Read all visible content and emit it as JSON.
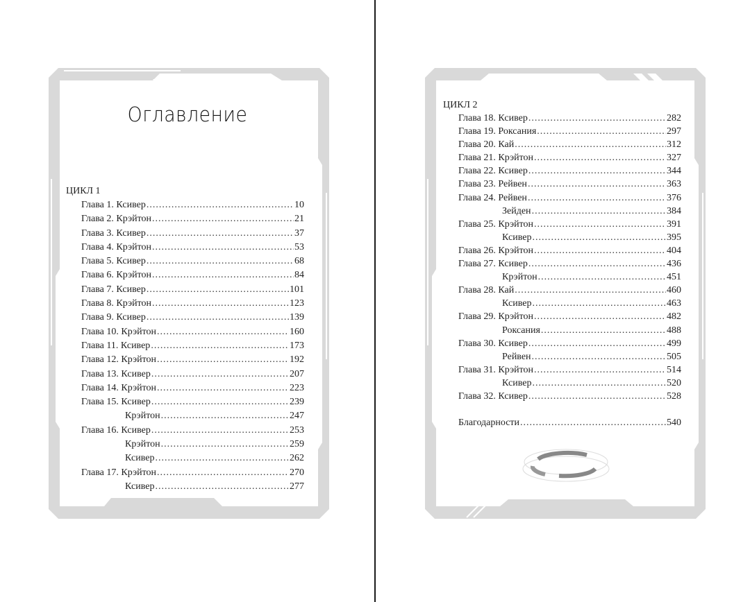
{
  "left_page": {
    "title": "Оглавление",
    "cycle": "ЦИКЛ 1",
    "entries": [
      {
        "label": "Глава 1. Ксивер",
        "page": "10",
        "sub": false
      },
      {
        "label": "Глава 2. Крэйтон",
        "page": "21",
        "sub": false
      },
      {
        "label": "Глава 3. Ксивер",
        "page": "37",
        "sub": false
      },
      {
        "label": "Глава 4. Крэйтон",
        "page": "53",
        "sub": false
      },
      {
        "label": "Глава 5. Ксивер",
        "page": "68",
        "sub": false
      },
      {
        "label": "Глава 6. Крэйтон",
        "page": "84",
        "sub": false
      },
      {
        "label": "Глава 7. Ксивер",
        "page": "101",
        "sub": false
      },
      {
        "label": "Глава 8. Крэйтон",
        "page": "123",
        "sub": false
      },
      {
        "label": "Глава 9. Ксивер",
        "page": "139",
        "sub": false
      },
      {
        "label": "Глава 10. Крэйтон",
        "page": "160",
        "sub": false
      },
      {
        "label": "Глава 11. Ксивер",
        "page": "173",
        "sub": false
      },
      {
        "label": "Глава 12. Крэйтон",
        "page": "192",
        "sub": false
      },
      {
        "label": "Глава 13. Ксивер",
        "page": "207",
        "sub": false
      },
      {
        "label": "Глава 14. Крэйтон",
        "page": "223",
        "sub": false
      },
      {
        "label": "Глава 15. Ксивер",
        "page": "239",
        "sub": false
      },
      {
        "label": "Крэйтон",
        "page": "247",
        "sub": true
      },
      {
        "label": "Глава 16. Ксивер",
        "page": "253",
        "sub": false
      },
      {
        "label": "Крэйтон",
        "page": "259",
        "sub": true
      },
      {
        "label": "Ксивер",
        "page": "262",
        "sub": true
      },
      {
        "label": "Глава 17. Крэйтон",
        "page": "270",
        "sub": false
      },
      {
        "label": "Ксивер",
        "page": "277",
        "sub": true
      }
    ]
  },
  "right_page": {
    "cycle": "ЦИКЛ 2",
    "entries": [
      {
        "label": "Глава 18. Ксивер",
        "page": "282",
        "sub": false
      },
      {
        "label": "Глава 19. Роксания",
        "page": "297",
        "sub": false
      },
      {
        "label": "Глава 20. Кай",
        "page": "312",
        "sub": false
      },
      {
        "label": "Глава 21. Крэйтон",
        "page": "327",
        "sub": false
      },
      {
        "label": "Глава 22. Ксивер",
        "page": "344",
        "sub": false
      },
      {
        "label": "Глава 23. Рейвен",
        "page": "363",
        "sub": false
      },
      {
        "label": "Глава 24. Рейвен",
        "page": "376",
        "sub": false
      },
      {
        "label": "Зейден",
        "page": "384",
        "sub": true
      },
      {
        "label": "Глава 25. Крэйтон",
        "page": "391",
        "sub": false
      },
      {
        "label": "Ксивер",
        "page": "395",
        "sub": true
      },
      {
        "label": "Глава 26. Крэйтон",
        "page": "404",
        "sub": false
      },
      {
        "label": "Глава 27. Ксивер",
        "page": "436",
        "sub": false
      },
      {
        "label": "Крэйтон",
        "page": "451",
        "sub": true
      },
      {
        "label": "Глава 28. Кай",
        "page": "460",
        "sub": false
      },
      {
        "label": "Ксивер",
        "page": "463",
        "sub": true
      },
      {
        "label": "Глава 29. Крэйтон",
        "page": "482",
        "sub": false
      },
      {
        "label": "Роксания",
        "page": "488",
        "sub": true
      },
      {
        "label": "Глава 30. Ксивер",
        "page": "499",
        "sub": false
      },
      {
        "label": "Рейвен",
        "page": "505",
        "sub": true
      },
      {
        "label": "Глава 31. Крэйтон",
        "page": "514",
        "sub": false
      },
      {
        "label": "Ксивер",
        "page": "520",
        "sub": true
      },
      {
        "label": "Глава 32. Ксивер",
        "page": "528",
        "sub": false
      }
    ],
    "acknowledgements": {
      "label": "Благодарности",
      "page": "540"
    }
  },
  "colors": {
    "frame": "#d8d8d8",
    "text": "#222222",
    "divider": "#1a1a1a"
  }
}
